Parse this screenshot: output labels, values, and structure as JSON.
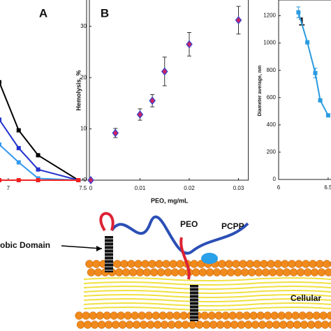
{
  "chart_data": [
    {
      "type": "line",
      "panel_label": "A",
      "x": [
        6.94,
        7.07,
        7.2,
        7.47
      ],
      "xlim": [
        6.94,
        7.525
      ],
      "xticks": [
        7,
        7.5
      ],
      "ylim": [
        0,
        100
      ],
      "series": [
        {
          "color": "#000000",
          "values": [
            55,
            28,
            14,
            0
          ]
        },
        {
          "color": "#2233cc",
          "values": [
            34,
            18,
            6,
            0
          ]
        },
        {
          "color": "#3399ee",
          "values": [
            20,
            10,
            1,
            0
          ]
        },
        {
          "color": "#ee2222",
          "values": [
            0,
            0,
            0,
            0
          ]
        }
      ]
    },
    {
      "type": "scatter",
      "panel_label": "B",
      "x": [
        0,
        0.005,
        0.01,
        0.0125,
        0.015,
        0.02,
        0.03
      ],
      "values": [
        0,
        9.2,
        12.8,
        15.5,
        21.2,
        26.5,
        31.2
      ],
      "errors": [
        0,
        0.9,
        1.1,
        1.2,
        2.8,
        2.3,
        2.7
      ],
      "xlabel": "PEO, mg/mL",
      "ylabel": "Hemolysis, %",
      "xlim": [
        0,
        0.032
      ],
      "ylim": [
        0,
        35
      ],
      "xticks": [
        0,
        0.01,
        0.02,
        0.03
      ],
      "yticks": [
        0,
        10,
        20,
        30
      ],
      "color": "#cc2266",
      "edge_color": "#3344cc"
    },
    {
      "type": "line",
      "panel_label": "1",
      "x": [
        6.2,
        6.29,
        6.37,
        6.42,
        6.5
      ],
      "values": [
        1225,
        1005,
        780,
        580,
        470
      ],
      "errors": [
        40,
        0,
        35,
        0,
        0
      ],
      "ylabel": "Diameter average, nm",
      "xlim": [
        6,
        6.55
      ],
      "ylim": [
        0,
        1300
      ],
      "xticks": [
        6,
        {
          "value": 6.5,
          "label": "6.5"
        }
      ],
      "yticks": [
        0,
        200,
        400,
        600,
        800,
        1000,
        1200
      ],
      "color": "#2a9be0"
    }
  ],
  "diagram": {
    "labels": [
      "PEO",
      "PCPP",
      "obic Domain",
      "Cellular"
    ]
  }
}
